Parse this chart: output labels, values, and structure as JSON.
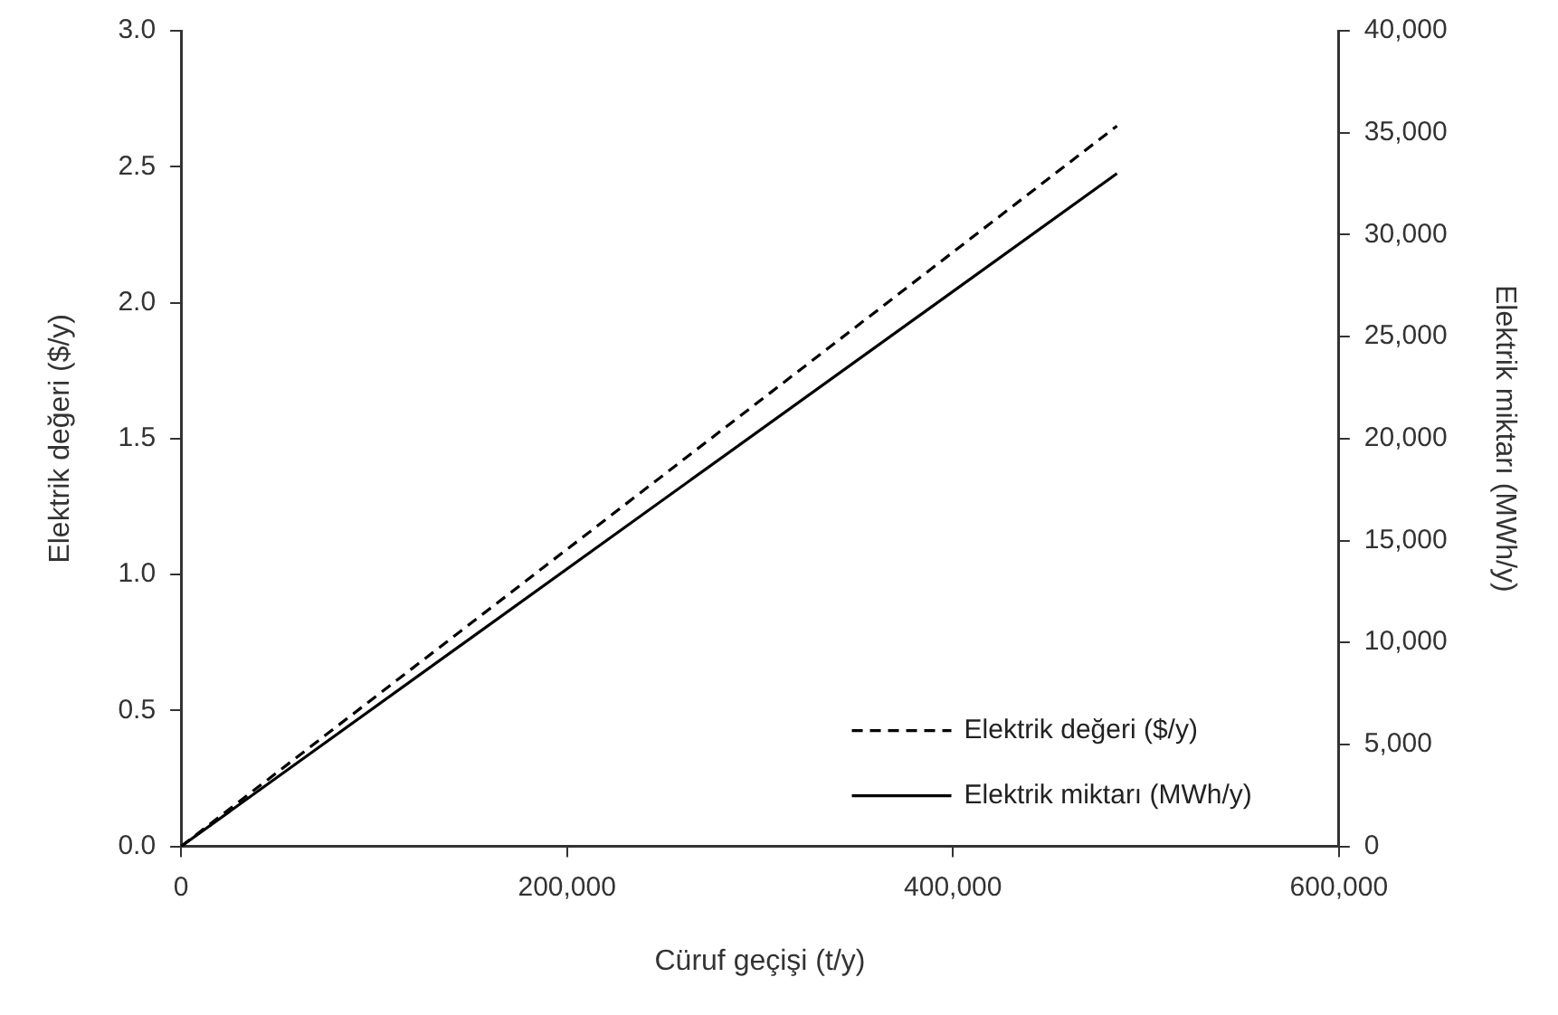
{
  "chart_data": {
    "type": "line",
    "xlabel": "Cüruf geçişi (t/y)",
    "ylabel": "Elektrik değeri ($/y)",
    "y2label": "Elektrik miktarı (MWh/y)",
    "x": [
      0,
      485000
    ],
    "series": [
      {
        "name": "Elektrik değeri ($/y)",
        "color": "#000000",
        "values": [
          0,
          2.65
        ],
        "line_style": "dashed"
      },
      {
        "name": "Elektrik miktarı (MWh/y)",
        "color": "#000000",
        "values": [
          0,
          33000
        ],
        "line_style": "solid",
        "axis": "y2"
      }
    ],
    "xlim": [
      0,
      600000
    ],
    "xticks": [
      0,
      {
        "value": 200000,
        "label": "200,000"
      },
      {
        "value": 400000,
        "label": "400,000"
      },
      {
        "value": 600000,
        "label": "600,000"
      }
    ],
    "ylim": [
      0,
      3
    ],
    "yticks": [
      {
        "value": 0,
        "label": "0.0"
      },
      0.5,
      {
        "value": 1,
        "label": "1.0"
      },
      1.5,
      {
        "value": 2,
        "label": "2.0"
      },
      2.5,
      {
        "value": 3,
        "label": "3.0"
      }
    ],
    "y2lim": [
      0,
      40000
    ],
    "y2ticks": [
      0,
      {
        "value": 5000,
        "label": "5,000"
      },
      {
        "value": 10000,
        "label": "10,000"
      },
      {
        "value": 15000,
        "label": "15,000"
      },
      {
        "value": 20000,
        "label": "20,000"
      },
      {
        "value": 25000,
        "label": "25,000"
      },
      {
        "value": 30000,
        "label": "30,000"
      },
      {
        "value": 35000,
        "label": "35,000"
      },
      {
        "value": 40000,
        "label": "40,000"
      }
    ],
    "grid": false,
    "legend": "bottom right",
    "marker": "none"
  }
}
